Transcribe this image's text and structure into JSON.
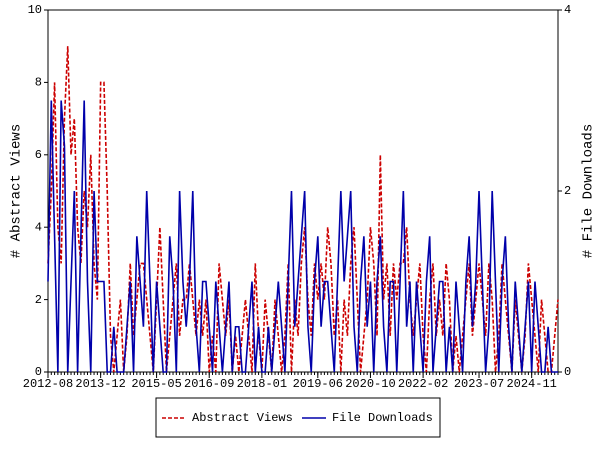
{
  "chart_data": {
    "type": "line",
    "x": [
      "2012-08",
      "2012-09",
      "2012-10",
      "2012-11",
      "2012-12",
      "2013-01",
      "2013-02",
      "2013-03",
      "2013-04",
      "2013-05",
      "2013-06",
      "2013-07",
      "2013-08",
      "2013-09",
      "2013-10",
      "2013-11",
      "2013-12",
      "2014-01",
      "2014-02",
      "2014-03",
      "2014-04",
      "2014-05",
      "2014-06",
      "2014-07",
      "2014-08",
      "2014-09",
      "2014-10",
      "2014-11",
      "2014-12",
      "2015-01",
      "2015-02",
      "2015-03",
      "2015-04",
      "2015-05",
      "2015-06",
      "2015-07",
      "2015-08",
      "2015-09",
      "2015-10",
      "2015-11",
      "2015-12",
      "2016-01",
      "2016-02",
      "2016-03",
      "2016-04",
      "2016-05",
      "2016-06",
      "2016-07",
      "2016-08",
      "2016-09",
      "2016-10",
      "2016-11",
      "2016-12",
      "2017-01",
      "2017-02",
      "2017-03",
      "2017-04",
      "2017-05",
      "2017-06",
      "2017-07",
      "2017-08",
      "2017-09",
      "2017-10",
      "2017-11",
      "2017-12",
      "2018-01",
      "2018-02",
      "2018-03",
      "2018-04",
      "2018-05",
      "2018-06",
      "2018-07",
      "2018-08",
      "2018-09",
      "2018-10",
      "2018-11",
      "2018-12",
      "2019-01",
      "2019-02",
      "2019-03",
      "2019-04",
      "2019-05",
      "2019-06",
      "2019-07",
      "2019-08",
      "2019-09",
      "2019-10",
      "2019-11",
      "2019-12",
      "2020-01",
      "2020-02",
      "2020-03",
      "2020-04",
      "2020-05",
      "2020-06",
      "2020-07",
      "2020-08",
      "2020-09",
      "2020-10",
      "2020-11",
      "2020-12",
      "2021-01",
      "2021-02",
      "2021-03",
      "2021-04",
      "2021-05",
      "2021-06",
      "2021-07",
      "2021-08",
      "2021-09",
      "2021-10",
      "2021-11",
      "2021-12",
      "2022-01",
      "2022-02",
      "2022-03",
      "2022-04",
      "2022-05",
      "2022-06",
      "2022-07",
      "2022-08",
      "2022-09",
      "2022-10",
      "2022-11",
      "2022-12",
      "2023-01",
      "2023-02",
      "2023-03",
      "2023-04",
      "2023-05",
      "2023-06",
      "2023-07",
      "2023-08",
      "2023-09",
      "2023-10",
      "2023-11",
      "2023-12",
      "2024-01",
      "2024-02",
      "2024-03",
      "2024-04",
      "2024-05",
      "2024-06",
      "2024-07",
      "2024-08",
      "2024-09",
      "2024-10",
      "2024-11",
      "2024-12",
      "2025-01",
      "2025-02",
      "2025-03",
      "2025-04",
      "2025-05",
      "2025-06",
      "2025-07"
    ],
    "xticks": [
      "2012-08",
      "2013-12",
      "2015-05",
      "2016-09",
      "2018-01",
      "2019-06",
      "2020-10",
      "2022-02",
      "2023-07",
      "2024-11"
    ],
    "ylabel": "# Abstract Views",
    "y2label": "# File Downloads",
    "ylim": [
      0,
      10
    ],
    "yticks": [
      0,
      2,
      4,
      6,
      8,
      10
    ],
    "y2lim": [
      0,
      4
    ],
    "y2ticks": [
      0,
      2,
      4
    ],
    "series": [
      {
        "name": "Abstract Views",
        "color": "#cc0000",
        "dash": true,
        "values": [
          3,
          5,
          8,
          4,
          3,
          7,
          9,
          6,
          7,
          4,
          3,
          5,
          4,
          6,
          3,
          2,
          8,
          8,
          5,
          1,
          0,
          1,
          2,
          0,
          1,
          3,
          1,
          2,
          3,
          3,
          2,
          1,
          0,
          2,
          4,
          2,
          0,
          1,
          2,
          3,
          1,
          2,
          2,
          3,
          2,
          1,
          2,
          1,
          2,
          0,
          1,
          0,
          3,
          2,
          1,
          2,
          0,
          1,
          0,
          1,
          2,
          1,
          0,
          3,
          1,
          0,
          2,
          1,
          0,
          2,
          1,
          0,
          1,
          3,
          0,
          2,
          1,
          3,
          4,
          2,
          1,
          3,
          2,
          3,
          2,
          4,
          3,
          1,
          2,
          0,
          2,
          1,
          3,
          4,
          2,
          0,
          1,
          2,
          4,
          3,
          1,
          6,
          2,
          3,
          1,
          3,
          2,
          3,
          3,
          4,
          2,
          1,
          2,
          3,
          1,
          0,
          2,
          3,
          1,
          2,
          1,
          3,
          2,
          0,
          1,
          0,
          1,
          2,
          3,
          1,
          2,
          3,
          2,
          1,
          3,
          2,
          0,
          1,
          3,
          2,
          1,
          0,
          2,
          1,
          0,
          1,
          3,
          2,
          1,
          0,
          2,
          1,
          0,
          0,
          1,
          2
        ]
      },
      {
        "name": "File Downloads",
        "color": "#0000aa",
        "axis": "y2",
        "values": [
          1,
          3,
          1.5,
          0,
          3,
          2.5,
          0,
          1,
          2,
          0,
          1.5,
          3,
          1,
          0,
          2,
          1,
          1,
          1,
          0,
          0,
          0.5,
          0,
          0,
          0,
          0.5,
          1,
          0,
          1.5,
          1,
          0.5,
          2,
          1,
          0,
          1,
          0.5,
          0,
          0,
          1.5,
          1,
          0,
          2,
          1,
          0.5,
          1,
          2,
          0.5,
          0,
          1,
          1,
          0.5,
          0,
          1,
          0.5,
          0,
          0.5,
          1,
          0,
          0.5,
          0.5,
          0,
          0,
          0.5,
          1,
          0,
          0.5,
          0,
          0,
          0.5,
          0,
          0.5,
          1,
          0.5,
          0,
          1,
          2,
          0.5,
          1,
          1.5,
          2,
          0.5,
          0,
          1,
          1.5,
          0.5,
          1,
          1,
          0.5,
          0,
          1,
          2,
          1,
          1.5,
          2,
          0.5,
          0,
          1,
          1.5,
          0.5,
          1,
          0,
          1,
          1.5,
          0.5,
          0,
          1,
          1,
          0,
          1,
          2,
          0.5,
          1,
          0,
          1,
          0.5,
          0,
          1,
          1.5,
          0,
          0.5,
          1,
          1,
          0,
          0.5,
          0,
          1,
          0.5,
          0,
          1,
          1.5,
          0.5,
          1,
          2,
          1,
          0,
          0.5,
          2,
          1,
          0,
          1,
          1.5,
          0.5,
          0,
          1,
          0.5,
          0,
          0.5,
          1,
          0,
          1,
          0.5,
          0,
          0,
          0.5,
          0,
          0,
          0
        ]
      }
    ]
  }
}
